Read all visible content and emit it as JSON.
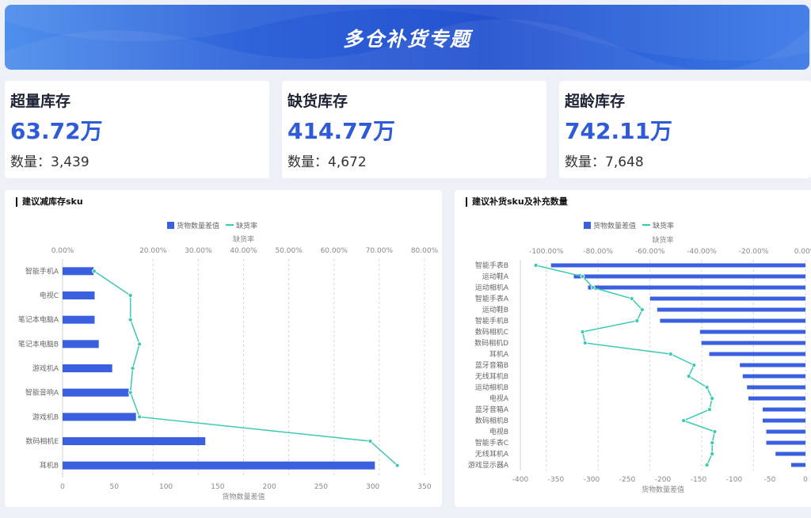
{
  "header": {
    "title": "多仓补货专题"
  },
  "kpis": [
    {
      "title": "超量库存",
      "value": "63.72万",
      "count": "数量：3,439"
    },
    {
      "title": "缺货库存",
      "value": "414.77万",
      "count": "数量：4,672"
    },
    {
      "title": "超龄库存",
      "value": "742.11万",
      "count": "数量：7,648"
    }
  ],
  "colors": {
    "bar": "#3a60e0",
    "line": "#3ec9b3",
    "value": "#2f5bd9"
  },
  "chart_data": [
    {
      "type": "bar",
      "orientation": "horizontal",
      "title": "建议减库存sku",
      "legend": [
        "货物数量差值",
        "缺货率"
      ],
      "legend_position": "top-center",
      "xlabel": "货物数量差值",
      "x2label": "缺货率",
      "xlim": [
        0,
        350
      ],
      "xticks": [
        "0",
        "50",
        "100",
        "150",
        "200",
        "250",
        "300",
        "350"
      ],
      "x2lim": [
        0,
        0.8
      ],
      "x2ticks": [
        {
          "v": 0,
          "label": "0.00%"
        },
        {
          "v": 0.2,
          "label": "20.00%"
        },
        {
          "v": 0.3,
          "label": "30.00%"
        },
        {
          "v": 0.4,
          "label": "40.00%"
        },
        {
          "v": 0.5,
          "label": "50.00%"
        },
        {
          "v": 0.6,
          "label": "60.00%"
        },
        {
          "v": 0.7,
          "label": "70.00%"
        },
        {
          "v": 0.8,
          "label": "80.00%"
        }
      ],
      "categories": [
        "智能手机A",
        "电视C",
        "笔记本电脑A",
        "笔记本电脑B",
        "游戏机A",
        "智能音响A",
        "游戏机B",
        "数码相机E",
        "耳机B"
      ],
      "series": [
        {
          "name": "货物数量差值",
          "type": "bar",
          "values": [
            30,
            31,
            31,
            35,
            48,
            64,
            71,
            138,
            302
          ]
        },
        {
          "name": "缺货率",
          "type": "line",
          "values": [
            0.07,
            0.15,
            0.15,
            0.17,
            0.155,
            0.15,
            0.17,
            0.68,
            0.74
          ]
        }
      ]
    },
    {
      "type": "bar",
      "orientation": "horizontal",
      "title": "建议补货sku及补充数量",
      "legend": [
        "货物数量差值",
        "缺货率"
      ],
      "legend_position": "top-center",
      "xlabel": "货物数量差值",
      "x2label": "缺货率",
      "xlim": [
        -400,
        0
      ],
      "xticks": [
        "-400",
        "-350",
        "-300",
        "-250",
        "-200",
        "-150",
        "-100",
        "-50",
        "0"
      ],
      "x2lim": [
        -1.1,
        0
      ],
      "x2ticks": [
        {
          "v": -1.0,
          "label": "-100.00%"
        },
        {
          "v": -0.8,
          "label": "-80.00%"
        },
        {
          "v": -0.6,
          "label": "-60.00%"
        },
        {
          "v": -0.4,
          "label": "-40.00%"
        },
        {
          "v": -0.2,
          "label": "-20.00%"
        },
        {
          "v": 0,
          "label": "0.00%"
        }
      ],
      "categories": [
        "智能手表B",
        "运动鞋A",
        "运动相机A",
        "智能手表A",
        "运动鞋B",
        "智能手机B",
        "数码相机C",
        "数码相机D",
        "耳机A",
        "蓝牙音箱B",
        "无线耳机B",
        "运动相机B",
        "电视A",
        "蓝牙音箱A",
        "数码相机B",
        "电视B",
        "智能手表C",
        "无线耳机A",
        "游戏显示器A"
      ],
      "series": [
        {
          "name": "货物数量差值",
          "type": "bar",
          "values": [
            -357,
            -325,
            -305,
            -218,
            -208,
            -204,
            -148,
            -146,
            -135,
            -92,
            -88,
            -82,
            -80,
            -60,
            -60,
            -55,
            -55,
            -42,
            -20
          ]
        },
        {
          "name": "缺货率",
          "type": "line",
          "values": [
            -1.04,
            -0.86,
            -0.82,
            -0.67,
            -0.63,
            -0.65,
            -0.86,
            -0.85,
            -0.52,
            -0.43,
            -0.45,
            -0.38,
            -0.36,
            -0.37,
            -0.47,
            -0.35,
            -0.36,
            -0.36,
            -0.38
          ]
        }
      ]
    }
  ]
}
